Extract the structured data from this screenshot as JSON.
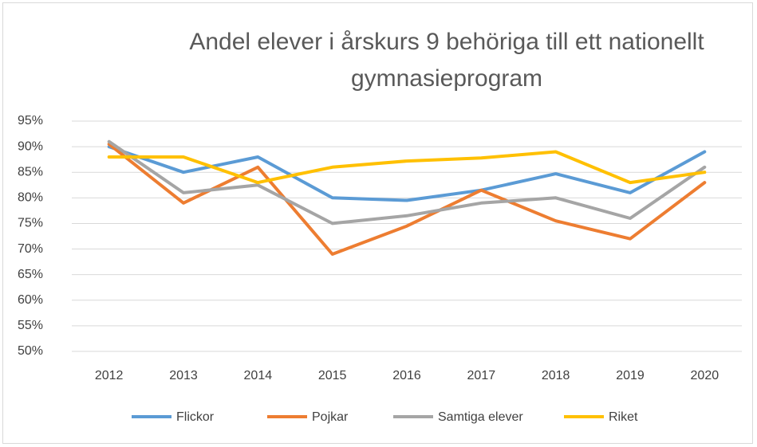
{
  "chart_data": {
    "type": "line",
    "title": "Andel elever i årskurs 9 behöriga till ett nationellt gymnasieprogram",
    "categories": [
      "2012",
      "2013",
      "2014",
      "2015",
      "2016",
      "2017",
      "2018",
      "2019",
      "2020"
    ],
    "series": [
      {
        "name": "Flickor",
        "color": "#5b9bd5",
        "values": [
          90,
          85,
          88,
          80,
          79.5,
          81.5,
          84.7,
          81,
          89
        ]
      },
      {
        "name": "Pojkar",
        "color": "#ed7d31",
        "values": [
          90.5,
          79,
          86,
          69,
          74.5,
          81.5,
          75.5,
          72,
          83
        ]
      },
      {
        "name": "Samtiga elever",
        "color": "#a5a5a5",
        "values": [
          91,
          81,
          82.5,
          75,
          76.5,
          79,
          80,
          76,
          86
        ]
      },
      {
        "name": "Riket",
        "color": "#ffc000",
        "values": [
          88,
          88,
          83,
          86,
          87.2,
          87.8,
          89,
          83,
          85
        ]
      }
    ],
    "ylim": [
      50,
      95
    ],
    "yticks": [
      {
        "value": 50,
        "label": "50%"
      },
      {
        "value": 55,
        "label": "55%"
      },
      {
        "value": 60,
        "label": "60%"
      },
      {
        "value": 65,
        "label": "65%"
      },
      {
        "value": 70,
        "label": "70%"
      },
      {
        "value": 75,
        "label": "75%"
      },
      {
        "value": 80,
        "label": "80%"
      },
      {
        "value": 85,
        "label": "85%"
      },
      {
        "value": 90,
        "label": "90%"
      },
      {
        "value": 95,
        "label": "95%"
      }
    ],
    "grid": true,
    "legend": "bottom"
  }
}
